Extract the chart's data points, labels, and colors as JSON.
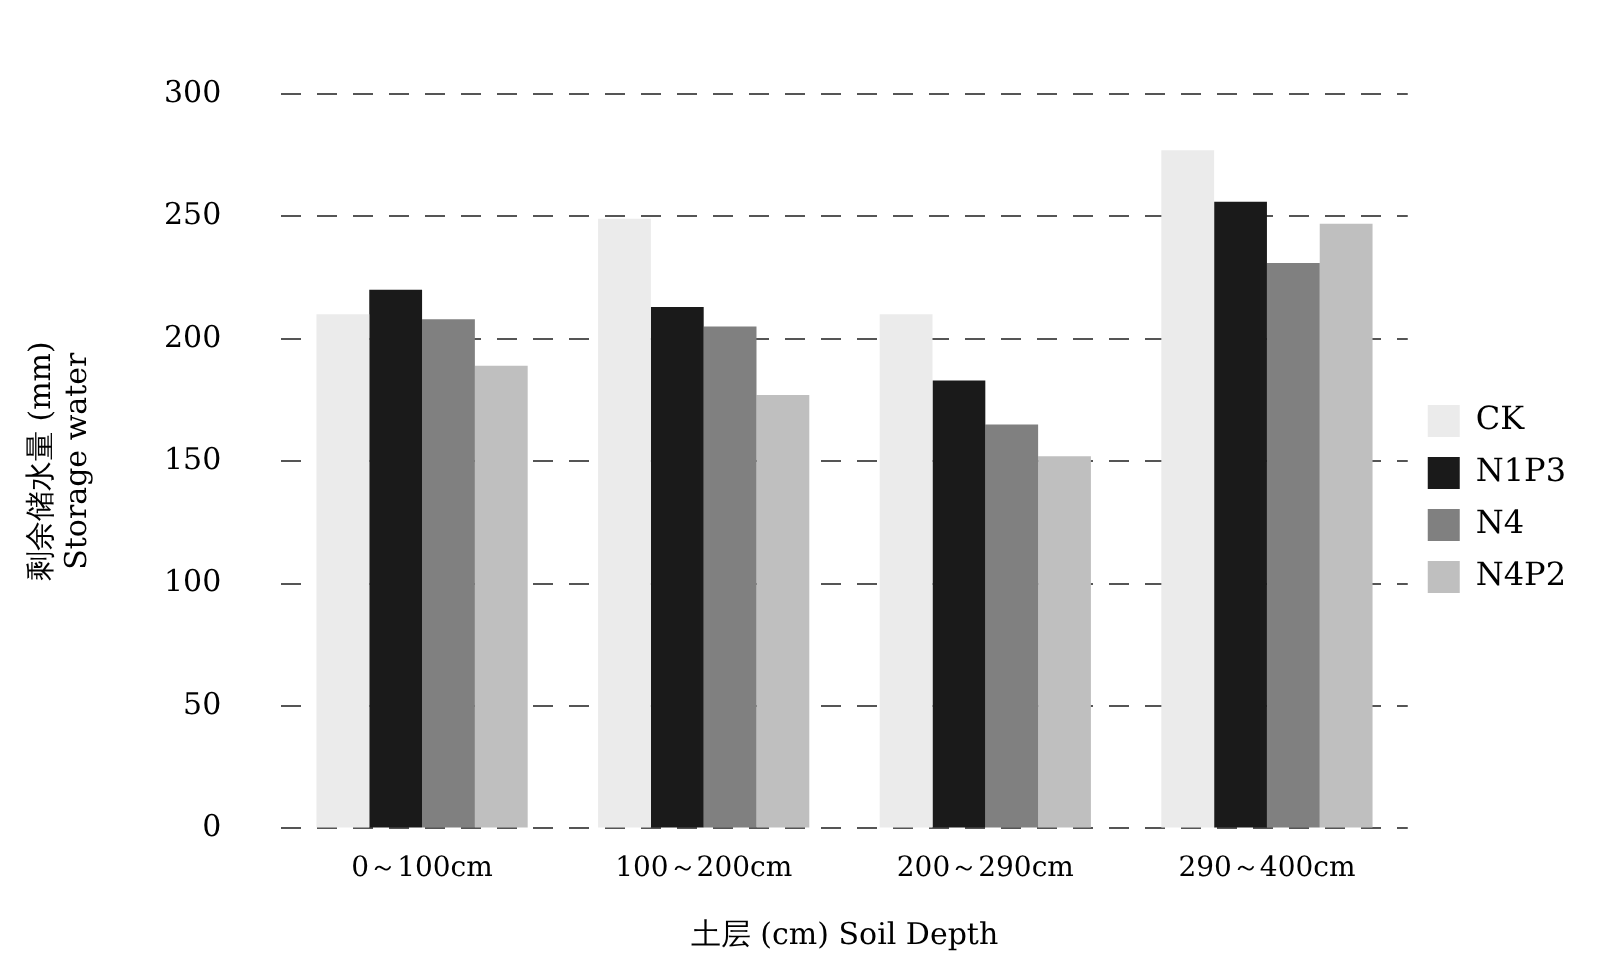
{
  "chart_data": {
    "type": "bar",
    "xlabel": "土层 (cm) Soil Depth",
    "ylabel": "剩余储水量 (mm)\nStorage water",
    "categories": [
      "0～100cm",
      "100～200cm",
      "200～290cm",
      "290～400cm"
    ],
    "series": [
      {
        "name": "CK",
        "color": "#ebebeb",
        "values": [
          210,
          249,
          210,
          277
        ]
      },
      {
        "name": "N1P3",
        "color": "#1a1a1a",
        "values": [
          220,
          213,
          183,
          256
        ]
      },
      {
        "name": "N4",
        "color": "#808080",
        "values": [
          208,
          205,
          165,
          231
        ]
      },
      {
        "name": "N4P2",
        "color": "#bfbfbf",
        "values": [
          189,
          177,
          152,
          247
        ]
      }
    ],
    "ylim": [
      0,
      300
    ],
    "yticks": [
      0,
      50,
      100,
      150,
      200,
      250,
      300
    ],
    "grid": "y",
    "legend": "right"
  }
}
